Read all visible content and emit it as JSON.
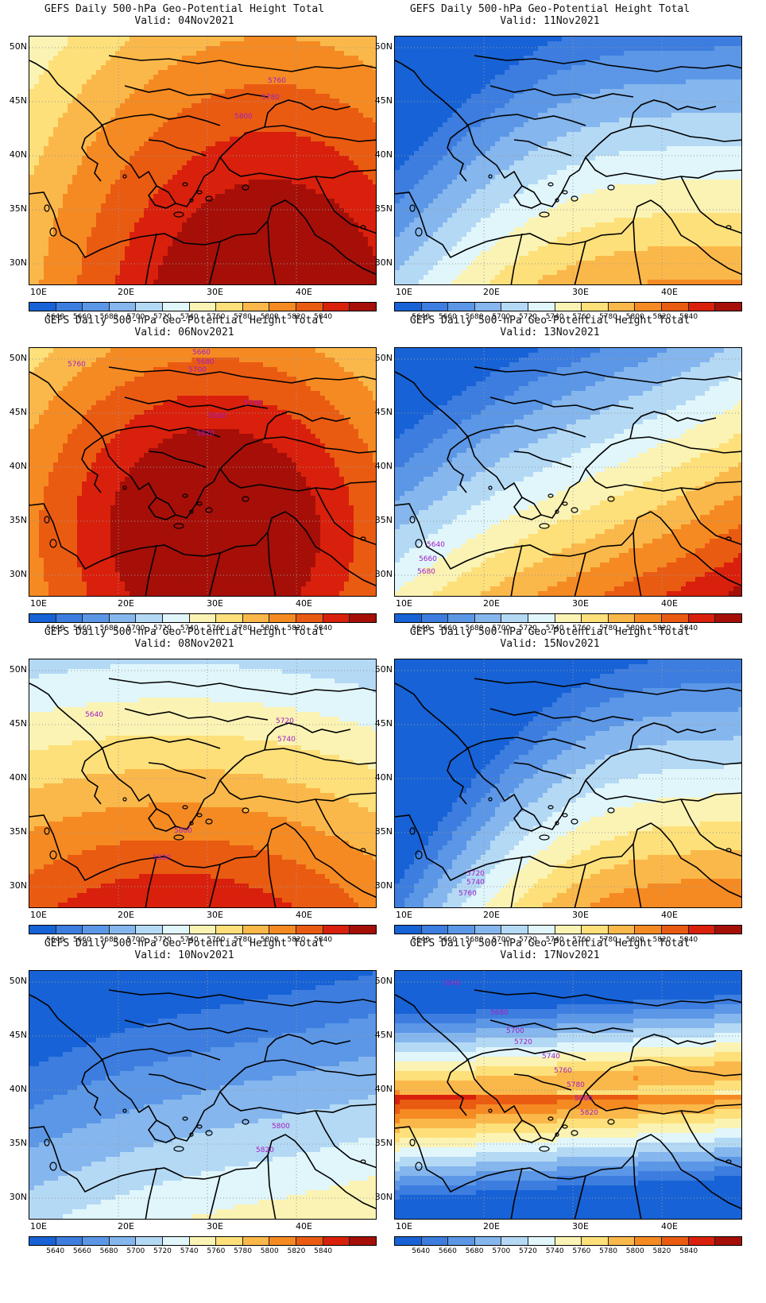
{
  "title": "GEFS Daily 500-hPa Geo-Potential Height Total",
  "lat_labels": [
    "50N",
    "45N",
    "40N",
    "35N",
    "30N"
  ],
  "lon_labels": [
    "10E",
    "20E",
    "30E",
    "40E"
  ],
  "colorbar": {
    "labels": [
      "5640",
      "5660",
      "5680",
      "5700",
      "5720",
      "5740",
      "5760",
      "5780",
      "5800",
      "5820",
      "5840"
    ],
    "colors": [
      "#1762d6",
      "#3c7ddf",
      "#5b97e6",
      "#85b6ee",
      "#b4d9f5",
      "#e0f6fb",
      "#fbf3b4",
      "#fde07a",
      "#fbb84a",
      "#f58a22",
      "#ea5b12",
      "#d9200c",
      "#a50f08"
    ]
  },
  "panels": [
    {
      "valid": "Valid: 04Nov2021",
      "labels": [
        "5760",
        "5780",
        "5800"
      ]
    },
    {
      "valid": "Valid: 11Nov2021",
      "labels": []
    },
    {
      "valid": "Valid: 06Nov2021",
      "labels": [
        "5660",
        "5680",
        "5700",
        "5760",
        "5740",
        "5800",
        "5820"
      ]
    },
    {
      "valid": "Valid: 13Nov2021",
      "labels": [
        "5640",
        "5660",
        "5680"
      ]
    },
    {
      "valid": "Valid: 08Nov2021",
      "labels": [
        "5640",
        "5720",
        "5740",
        "5800",
        "5820"
      ]
    },
    {
      "valid": "Valid: 15Nov2021",
      "labels": [
        "5720",
        "5740",
        "5760"
      ]
    },
    {
      "valid": "Valid: 10Nov2021",
      "labels": [
        "5800",
        "5820"
      ]
    },
    {
      "valid": "Valid: 17Nov2021",
      "labels": [
        "5640",
        "5680",
        "5700",
        "5720",
        "5740",
        "5760",
        "5780",
        "5800",
        "5820"
      ]
    }
  ]
}
